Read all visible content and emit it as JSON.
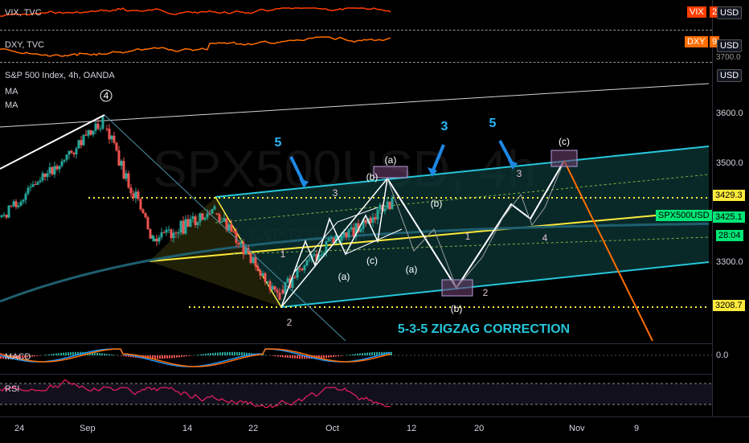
{
  "panes": {
    "vix": {
      "title": "VIX, TVC",
      "tag": "VIX",
      "tag_value": "2",
      "tag_color": "#ff3d00",
      "currency": "USD",
      "line_color": "#ff3d00"
    },
    "dxy": {
      "title": "DXY, TVC",
      "tag": "DXY",
      "tag_value": "9",
      "tag_color": "#ff6d00",
      "currency": "USD",
      "line_color": "#ff6d00"
    },
    "main": {
      "title": "S&P 500 Index, 4h, OANDA",
      "ma1": "MA",
      "ma2": "MA",
      "currency": "USD",
      "watermark": "SPX500USD, 4h",
      "watermark_sub": "S&P 500 Index",
      "correction_text": "5-3-5 ZIGZAG CORRECTION",
      "wave_labels": {
        "top4": "4",
        "a_top": "(a)",
        "b_top": "(b)",
        "b_mid": "(b)",
        "c_mid": "(c)",
        "b_bottom": "(b)",
        "c_top": "(c)",
        "a_low": "(a)",
        "a_mid": "(a)",
        "one": "1",
        "two": "2",
        "three": "3",
        "two_low": "2",
        "one_right": "1",
        "two_right": "2",
        "three_right": "3",
        "four_right": "4"
      },
      "blue_labels": [
        "5",
        "3",
        "5"
      ]
    },
    "macd": {
      "title": "MACD"
    },
    "rsi": {
      "title": "RSI"
    }
  },
  "price_axis": {
    "ticks": [
      "3600.0",
      "3500.0",
      "3300.0"
    ],
    "macd_tick": "0.0",
    "cropped_tick": "3700.0",
    "badges": [
      {
        "text": "3429.3",
        "bg": "#ffeb3b",
        "fg": "#000"
      },
      {
        "text": "3425.1",
        "bg": "#00e676",
        "fg": "#000"
      },
      {
        "text": "SPX500USD",
        "bg": "#00e676",
        "fg": "#000"
      },
      {
        "text": "28:04",
        "bg": "#00e676",
        "fg": "#000"
      },
      {
        "text": "3208.7",
        "bg": "#ffeb3b",
        "fg": "#000"
      }
    ]
  },
  "time_axis": {
    "ticks": [
      "24",
      "Sep",
      "14",
      "22",
      "Oct",
      "12",
      "20",
      "Nov",
      "9"
    ]
  },
  "colors": {
    "channel_cyan": "#26c6da",
    "channel_fill": "#0d3b3b",
    "midline_yellow": "#ffeb3b",
    "ma_teal": "#1f5f6f",
    "macd_line": "#2196f3",
    "signal_line": "#ff6d00",
    "rsi_line": "#e91e63",
    "up_candle": "#26a69a",
    "down_candle": "#ef5350",
    "forecast_orange": "#ff6d00",
    "blue_arrow": "#1e88e5",
    "box_purple": "#b39ddb"
  }
}
